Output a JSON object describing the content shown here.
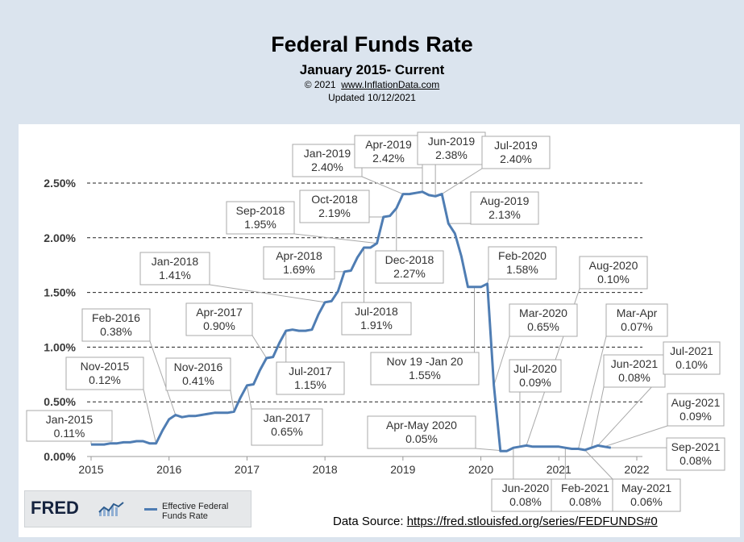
{
  "header": {
    "title": "Federal Funds Rate",
    "subtitle": "January 2015- Current",
    "copyright_prefix": "© 2021",
    "copyright_link": "www.InflationData.com",
    "updated": "Updated  10/12/2021"
  },
  "fred": {
    "logo": "FRED",
    "logo_icon": "spark-chart-icon",
    "legend_label": "Effective Federal Funds Rate"
  },
  "source": {
    "label": "Data Source:",
    "url": "https://fred.stlouisfed.org/series/FEDFUNDS#0"
  },
  "chart_data": {
    "type": "line",
    "title": "Federal Funds Rate",
    "subtitle": "January 2015- Current",
    "xlabel": "",
    "ylabel": "",
    "ylim": [
      0,
      2.5
    ],
    "xlim": [
      "2015-01",
      "2022-02"
    ],
    "grid": "horizontal dashed",
    "y_ticks": [
      "0.00%",
      "0.50%",
      "1.00%",
      "1.50%",
      "2.00%",
      "2.50%"
    ],
    "x_ticks": [
      "2015",
      "2016",
      "2017",
      "2018",
      "2019",
      "2020",
      "2021",
      "2022"
    ],
    "line_color": "#4f7db3",
    "series": [
      {
        "name": "Effective Federal Funds Rate",
        "x": [
          "2015-01",
          "2015-02",
          "2015-03",
          "2015-04",
          "2015-05",
          "2015-06",
          "2015-07",
          "2015-08",
          "2015-09",
          "2015-10",
          "2015-11",
          "2015-12",
          "2016-01",
          "2016-02",
          "2016-03",
          "2016-04",
          "2016-05",
          "2016-06",
          "2016-07",
          "2016-08",
          "2016-09",
          "2016-10",
          "2016-11",
          "2016-12",
          "2017-01",
          "2017-02",
          "2017-03",
          "2017-04",
          "2017-05",
          "2017-06",
          "2017-07",
          "2017-08",
          "2017-09",
          "2017-10",
          "2017-11",
          "2017-12",
          "2018-01",
          "2018-02",
          "2018-03",
          "2018-04",
          "2018-05",
          "2018-06",
          "2018-07",
          "2018-08",
          "2018-09",
          "2018-10",
          "2018-11",
          "2018-12",
          "2019-01",
          "2019-02",
          "2019-03",
          "2019-04",
          "2019-05",
          "2019-06",
          "2019-07",
          "2019-08",
          "2019-09",
          "2019-10",
          "2019-11",
          "2019-12",
          "2020-01",
          "2020-02",
          "2020-03",
          "2020-04",
          "2020-05",
          "2020-06",
          "2020-07",
          "2020-08",
          "2020-09",
          "2020-10",
          "2020-11",
          "2020-12",
          "2021-01",
          "2021-02",
          "2021-03",
          "2021-04",
          "2021-05",
          "2021-06",
          "2021-07",
          "2021-08",
          "2021-09"
        ],
        "values": [
          0.11,
          0.11,
          0.11,
          0.12,
          0.12,
          0.13,
          0.13,
          0.14,
          0.14,
          0.12,
          0.12,
          0.24,
          0.34,
          0.38,
          0.36,
          0.37,
          0.37,
          0.38,
          0.39,
          0.4,
          0.4,
          0.4,
          0.41,
          0.54,
          0.65,
          0.66,
          0.79,
          0.9,
          0.91,
          1.04,
          1.15,
          1.16,
          1.15,
          1.15,
          1.16,
          1.3,
          1.41,
          1.42,
          1.51,
          1.69,
          1.7,
          1.82,
          1.91,
          1.91,
          1.95,
          2.19,
          2.2,
          2.27,
          2.4,
          2.4,
          2.41,
          2.42,
          2.39,
          2.38,
          2.4,
          2.13,
          2.04,
          1.83,
          1.55,
          1.55,
          1.55,
          1.58,
          0.65,
          0.05,
          0.05,
          0.08,
          0.09,
          0.1,
          0.09,
          0.09,
          0.09,
          0.09,
          0.09,
          0.08,
          0.07,
          0.07,
          0.06,
          0.08,
          0.1,
          0.09,
          0.08
        ]
      }
    ],
    "annotations": [
      {
        "label": "Jan-2015",
        "value": "0.11%",
        "x": "2015-01",
        "y": 0.11
      },
      {
        "label": "Nov-2015",
        "value": "0.12%",
        "x": "2015-11",
        "y": 0.12
      },
      {
        "label": "Feb-2016",
        "value": "0.38%",
        "x": "2016-02",
        "y": 0.38
      },
      {
        "label": "Nov-2016",
        "value": "0.41%",
        "x": "2016-11",
        "y": 0.41
      },
      {
        "label": "Jan-2017",
        "value": "0.65%",
        "x": "2017-01",
        "y": 0.65
      },
      {
        "label": "Apr-2017",
        "value": "0.90%",
        "x": "2017-04",
        "y": 0.9
      },
      {
        "label": "Jul-2017",
        "value": "1.15%",
        "x": "2017-07",
        "y": 1.15
      },
      {
        "label": "Jan-2018",
        "value": "1.41%",
        "x": "2018-01",
        "y": 1.41
      },
      {
        "label": "Apr-2018",
        "value": "1.69%",
        "x": "2018-04",
        "y": 1.69
      },
      {
        "label": "Jul-2018",
        "value": "1.91%",
        "x": "2018-07",
        "y": 1.91
      },
      {
        "label": "Sep-2018",
        "value": "1.95%",
        "x": "2018-09",
        "y": 1.95
      },
      {
        "label": "Oct-2018",
        "value": "2.19%",
        "x": "2018-10",
        "y": 2.19
      },
      {
        "label": "Dec-2018",
        "value": "2.27%",
        "x": "2018-12",
        "y": 2.27
      },
      {
        "label": "Jan-2019",
        "value": "2.40%",
        "x": "2019-01",
        "y": 2.4
      },
      {
        "label": "Apr-2019",
        "value": "2.42%",
        "x": "2019-04",
        "y": 2.42
      },
      {
        "label": "Jun-2019",
        "value": "2.38%",
        "x": "2019-06",
        "y": 2.38
      },
      {
        "label": "Jul-2019",
        "value": "2.40%",
        "x": "2019-07",
        "y": 2.4
      },
      {
        "label": "Aug-2019",
        "value": "2.13%",
        "x": "2019-08",
        "y": 2.13
      },
      {
        "label": "Nov 19 -Jan 20",
        "value": "1.55%",
        "x": "2019-12",
        "y": 1.55
      },
      {
        "label": "Feb-2020",
        "value": "1.58%",
        "x": "2020-02",
        "y": 1.58
      },
      {
        "label": "Mar-2020",
        "value": "0.65%",
        "x": "2020-03",
        "y": 0.65
      },
      {
        "label": "Apr-May 2020",
        "value": "0.05%",
        "x": "2020-05",
        "y": 0.05
      },
      {
        "label": "Jun-2020",
        "value": "0.08%",
        "x": "2020-06",
        "y": 0.08
      },
      {
        "label": "Jul-2020",
        "value": "0.09%",
        "x": "2020-07",
        "y": 0.09
      },
      {
        "label": "Aug-2020",
        "value": "0.10%",
        "x": "2020-08",
        "y": 0.1
      },
      {
        "label": "Feb-2021",
        "value": "0.08%",
        "x": "2021-02",
        "y": 0.08
      },
      {
        "label": "Mar-Apr",
        "value": "0.07%",
        "x": "2021-04",
        "y": 0.07
      },
      {
        "label": "May-2021",
        "value": "0.06%",
        "x": "2021-05",
        "y": 0.06
      },
      {
        "label": "Jun-2021",
        "value": "0.08%",
        "x": "2021-06",
        "y": 0.08
      },
      {
        "label": "Jul-2021",
        "value": "0.10%",
        "x": "2021-07",
        "y": 0.1
      },
      {
        "label": "Aug-2021",
        "value": "0.09%",
        "x": "2021-08",
        "y": 0.09
      },
      {
        "label": "Sep-2021",
        "value": "0.08%",
        "x": "2021-09",
        "y": 0.08
      }
    ]
  }
}
